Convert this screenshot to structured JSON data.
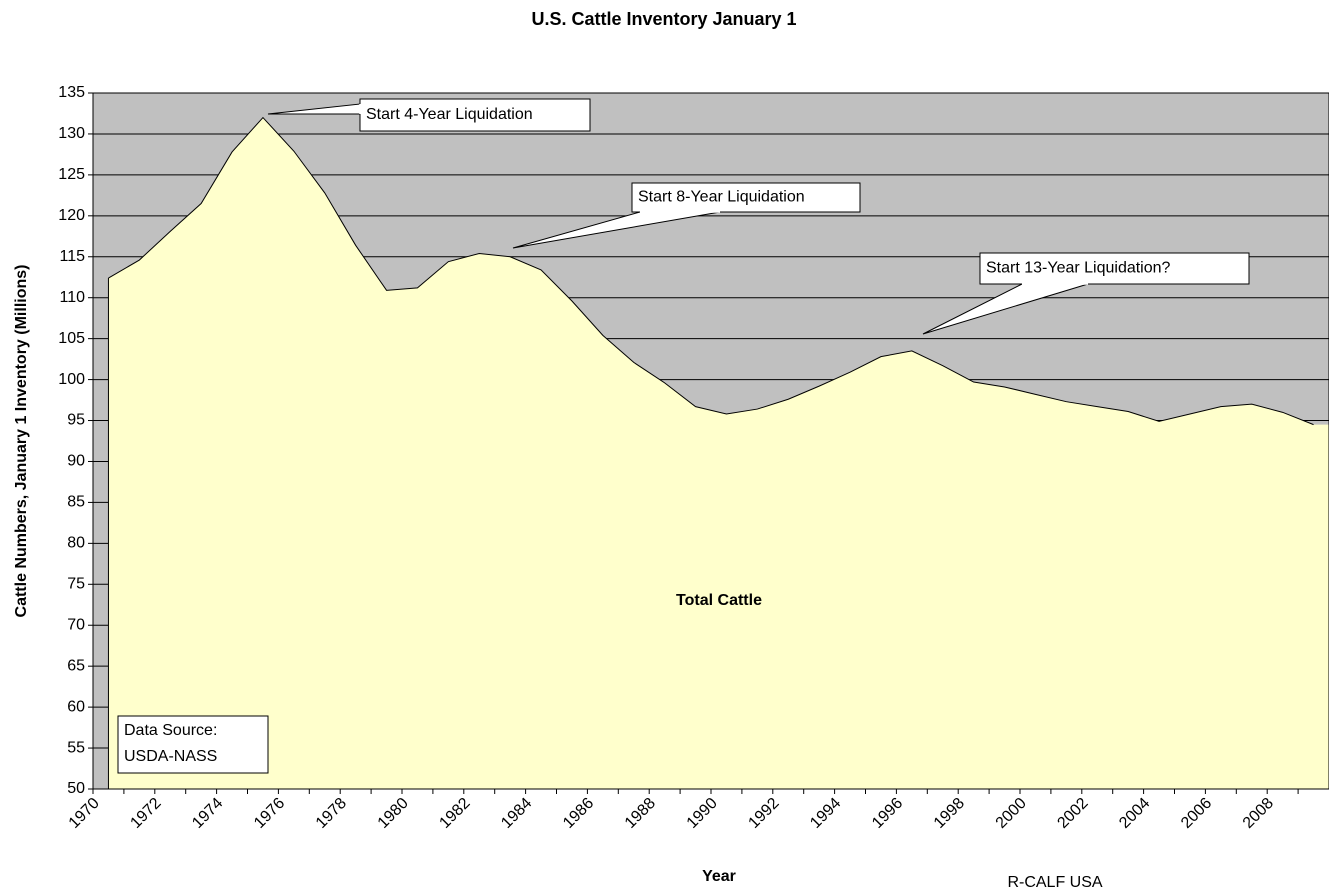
{
  "chart_data": {
    "type": "area",
    "title": "U.S. Cattle Inventory January 1",
    "x_label": "Year",
    "y_label": "Cattle Numbers, January 1 Inventory (Millions)",
    "categories": [
      "1970",
      null,
      "1972",
      null,
      "1974",
      null,
      "1976",
      null,
      "1978",
      null,
      "1980",
      null,
      "1982",
      null,
      "1984",
      null,
      "1986",
      null,
      "1988",
      null,
      "1990",
      null,
      "1992",
      null,
      "1994",
      null,
      "1996",
      null,
      "1998",
      null,
      "2000",
      null,
      "2002",
      null,
      "2004",
      null,
      "2006",
      null,
      "2008",
      null
    ],
    "series": [
      {
        "name": "Total Cattle",
        "color": "#ffffcc",
        "values": [
          112.4,
          114.6,
          118.1,
          121.5,
          127.8,
          132.0,
          127.9,
          122.8,
          116.4,
          110.9,
          111.2,
          114.4,
          115.4,
          115.0,
          113.4,
          109.6,
          105.4,
          102.1,
          99.6,
          96.7,
          95.8,
          96.4,
          97.6,
          99.2,
          100.9,
          102.8,
          103.5,
          101.7,
          99.7,
          99.1,
          98.2,
          97.3,
          96.7,
          96.1,
          94.9,
          95.8,
          96.7,
          97.0,
          96.0,
          94.5
        ]
      }
    ],
    "ylim": [
      50,
      135
    ],
    "yticks": [
      50,
      55,
      60,
      65,
      70,
      75,
      80,
      85,
      90,
      95,
      100,
      105,
      110,
      115,
      120,
      125,
      130,
      135
    ],
    "grid": true,
    "plot_background": "#c0c0c0",
    "annotations": [
      "Start 4-Year Liquidation",
      "Start 8-Year Liquidation",
      "Start 13-Year Liquidation?"
    ],
    "source_note": [
      "Data Source:",
      "USDA-NASS"
    ],
    "credit": "R-CALF USA"
  }
}
